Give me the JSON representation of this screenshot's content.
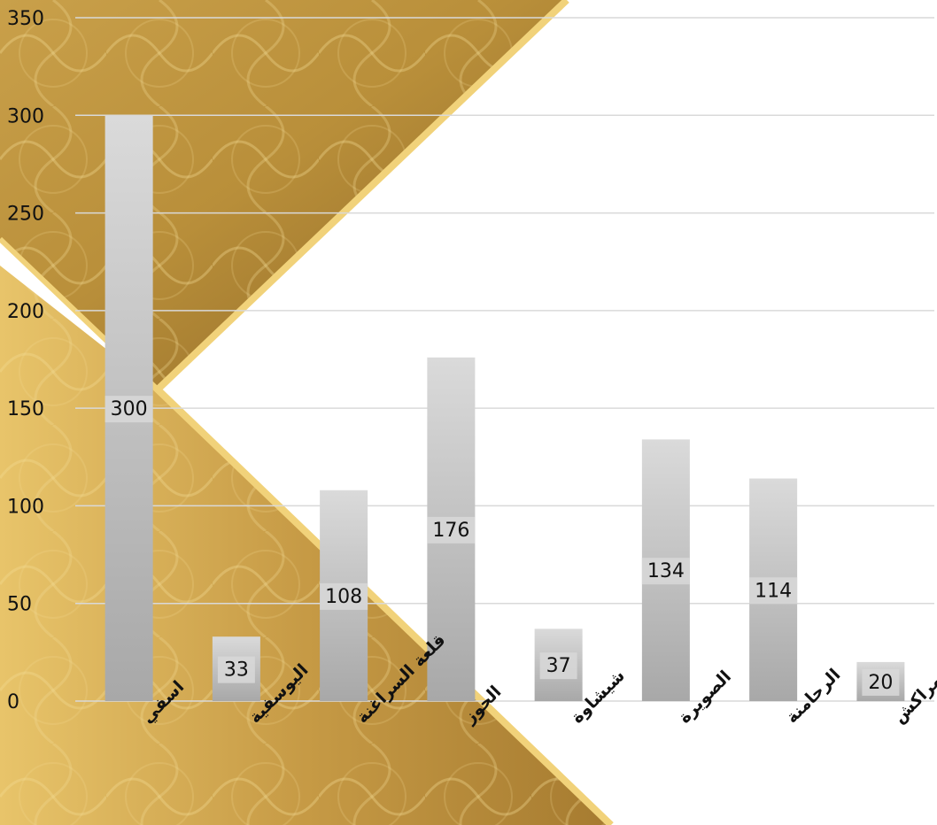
{
  "chart_data": {
    "type": "bar",
    "categories": [
      "اسفي",
      "اليوسفية",
      "قلعة السراغنة",
      "الحوز",
      "شيشاوة",
      "الصويرة",
      "الرحامنة",
      "مراكش"
    ],
    "values": [
      300,
      33,
      108,
      176,
      37,
      134,
      114,
      20
    ],
    "title": "",
    "xlabel": "",
    "ylabel": "",
    "ylim": [
      0,
      350
    ],
    "yticks": [
      0,
      50,
      100,
      150,
      200,
      250,
      300,
      350
    ],
    "grid": true,
    "data_labels": true,
    "legend": "none",
    "colors": {
      "bar_top": "#d9d9d9",
      "bar_bottom": "#a6a6a6",
      "gold_light": "#e9c86a",
      "gold_dark": "#9a7328",
      "gridline": "#d9d9d9"
    }
  }
}
